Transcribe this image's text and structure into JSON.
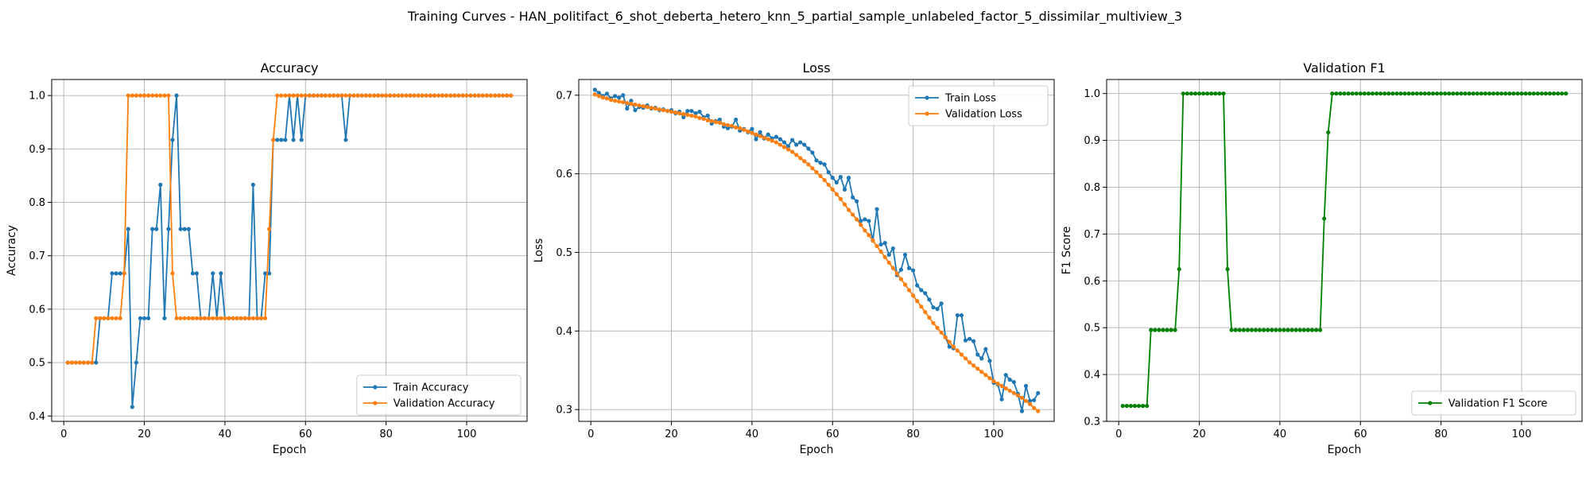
{
  "figure": {
    "title": "Training Curves - HAN_politifact_6_shot_deberta_hetero_knn_5_partial_sample_unlabeled_factor_5_dissimilar_multiview_3"
  },
  "colors": {
    "train": "#1f77b4",
    "validation": "#ff7f0e",
    "f1": "#008000",
    "grid": "#b0b0b0"
  },
  "chart_data": [
    {
      "type": "line",
      "title": "Accuracy",
      "xlabel": "Epoch",
      "ylabel": "Accuracy",
      "xlim": [
        -3,
        115
      ],
      "ylim": [
        0.39,
        1.03
      ],
      "xticks": [
        0,
        20,
        40,
        60,
        80,
        100
      ],
      "yticks": [
        0.4,
        0.5,
        0.6,
        0.7,
        0.8,
        0.9,
        1.0
      ],
      "grid": true,
      "legend_position": "lower-right",
      "x": [
        1,
        2,
        3,
        4,
        5,
        6,
        7,
        8,
        9,
        10,
        11,
        12,
        13,
        14,
        15,
        16,
        17,
        18,
        19,
        20,
        21,
        22,
        23,
        24,
        25,
        26,
        27,
        28,
        29,
        30,
        31,
        32,
        33,
        34,
        35,
        36,
        37,
        38,
        39,
        40,
        41,
        42,
        43,
        44,
        45,
        46,
        47,
        48,
        49,
        50,
        51,
        52,
        53,
        54,
        55,
        56,
        57,
        58,
        59,
        60,
        61,
        62,
        63,
        64,
        65,
        66,
        67,
        68,
        69,
        70,
        71,
        72,
        73,
        74,
        75,
        76,
        77,
        78,
        79,
        80,
        81,
        82,
        83,
        84,
        85,
        86,
        87,
        88,
        89,
        90,
        91,
        92,
        93,
        94,
        95,
        96,
        97,
        98,
        99,
        100,
        101,
        102,
        103,
        104,
        105,
        106,
        107,
        108,
        109,
        110,
        111
      ],
      "series": [
        {
          "name": "Train Accuracy",
          "color_key": "train",
          "values": [
            0.5,
            0.5,
            0.5,
            0.5,
            0.5,
            0.5,
            0.5,
            0.5,
            0.583,
            0.583,
            0.583,
            0.667,
            0.667,
            0.667,
            0.667,
            0.75,
            0.417,
            0.5,
            0.583,
            0.583,
            0.583,
            0.75,
            0.75,
            0.833,
            0.583,
            0.75,
            0.917,
            1.0,
            0.75,
            0.75,
            0.75,
            0.667,
            0.667,
            0.583,
            0.583,
            0.583,
            0.667,
            0.583,
            0.667,
            0.583,
            0.583,
            0.583,
            0.583,
            0.583,
            0.583,
            0.583,
            0.833,
            0.583,
            0.583,
            0.667,
            0.667,
            0.917,
            0.917,
            0.917,
            0.917,
            1.0,
            0.917,
            1.0,
            0.917,
            1.0,
            1.0,
            1.0,
            1.0,
            1.0,
            1.0,
            1.0,
            1.0,
            1.0,
            1.0,
            0.917,
            1.0,
            1.0,
            1.0,
            1.0,
            1.0,
            1.0,
            1.0,
            1.0,
            1.0,
            1.0,
            1.0,
            1.0,
            1.0,
            1.0,
            1.0,
            1.0,
            1.0,
            1.0,
            1.0,
            1.0,
            1.0,
            1.0,
            1.0,
            1.0,
            1.0,
            1.0,
            1.0,
            1.0,
            1.0,
            1.0,
            1.0,
            1.0,
            1.0,
            1.0,
            1.0,
            1.0,
            1.0,
            1.0,
            1.0,
            1.0,
            1.0
          ]
        },
        {
          "name": "Validation Accuracy",
          "color_key": "validation",
          "values": [
            0.5,
            0.5,
            0.5,
            0.5,
            0.5,
            0.5,
            0.5,
            0.583,
            0.583,
            0.583,
            0.583,
            0.583,
            0.583,
            0.583,
            0.667,
            1.0,
            1.0,
            1.0,
            1.0,
            1.0,
            1.0,
            1.0,
            1.0,
            1.0,
            1.0,
            1.0,
            0.667,
            0.583,
            0.583,
            0.583,
            0.583,
            0.583,
            0.583,
            0.583,
            0.583,
            0.583,
            0.583,
            0.583,
            0.583,
            0.583,
            0.583,
            0.583,
            0.583,
            0.583,
            0.583,
            0.583,
            0.583,
            0.583,
            0.583,
            0.583,
            0.75,
            0.917,
            1.0,
            1.0,
            1.0,
            1.0,
            1.0,
            1.0,
            1.0,
            1.0,
            1.0,
            1.0,
            1.0,
            1.0,
            1.0,
            1.0,
            1.0,
            1.0,
            1.0,
            1.0,
            1.0,
            1.0,
            1.0,
            1.0,
            1.0,
            1.0,
            1.0,
            1.0,
            1.0,
            1.0,
            1.0,
            1.0,
            1.0,
            1.0,
            1.0,
            1.0,
            1.0,
            1.0,
            1.0,
            1.0,
            1.0,
            1.0,
            1.0,
            1.0,
            1.0,
            1.0,
            1.0,
            1.0,
            1.0,
            1.0,
            1.0,
            1.0,
            1.0,
            1.0,
            1.0,
            1.0,
            1.0,
            1.0,
            1.0,
            1.0,
            1.0
          ]
        }
      ]
    },
    {
      "type": "line",
      "title": "Loss",
      "xlabel": "Epoch",
      "ylabel": "Loss",
      "xlim": [
        -3,
        115
      ],
      "ylim": [
        0.285,
        0.72
      ],
      "xticks": [
        0,
        20,
        40,
        60,
        80,
        100
      ],
      "yticks": [
        0.3,
        0.4,
        0.5,
        0.6,
        0.7
      ],
      "grid": true,
      "legend_position": "upper-right",
      "x": [
        1,
        2,
        3,
        4,
        5,
        6,
        7,
        8,
        9,
        10,
        11,
        12,
        13,
        14,
        15,
        16,
        17,
        18,
        19,
        20,
        21,
        22,
        23,
        24,
        25,
        26,
        27,
        28,
        29,
        30,
        31,
        32,
        33,
        34,
        35,
        36,
        37,
        38,
        39,
        40,
        41,
        42,
        43,
        44,
        45,
        46,
        47,
        48,
        49,
        50,
        51,
        52,
        53,
        54,
        55,
        56,
        57,
        58,
        59,
        60,
        61,
        62,
        63,
        64,
        65,
        66,
        67,
        68,
        69,
        70,
        71,
        72,
        73,
        74,
        75,
        76,
        77,
        78,
        79,
        80,
        81,
        82,
        83,
        84,
        85,
        86,
        87,
        88,
        89,
        90,
        91,
        92,
        93,
        94,
        95,
        96,
        97,
        98,
        99,
        100,
        101,
        102,
        103,
        104,
        105,
        106,
        107,
        108,
        109,
        110,
        111
      ],
      "series": [
        {
          "name": "Train Loss",
          "color_key": "train",
          "values": [
            0.707,
            0.703,
            0.699,
            0.702,
            0.696,
            0.699,
            0.697,
            0.7,
            0.683,
            0.693,
            0.681,
            0.685,
            0.684,
            0.687,
            0.683,
            0.684,
            0.681,
            0.682,
            0.68,
            0.681,
            0.677,
            0.679,
            0.672,
            0.68,
            0.68,
            0.677,
            0.679,
            0.672,
            0.674,
            0.664,
            0.667,
            0.669,
            0.66,
            0.658,
            0.66,
            0.669,
            0.655,
            0.657,
            0.653,
            0.657,
            0.644,
            0.653,
            0.645,
            0.65,
            0.645,
            0.647,
            0.644,
            0.64,
            0.635,
            0.643,
            0.637,
            0.64,
            0.637,
            0.632,
            0.627,
            0.617,
            0.614,
            0.612,
            0.602,
            0.595,
            0.589,
            0.596,
            0.58,
            0.595,
            0.57,
            0.565,
            0.54,
            0.542,
            0.54,
            0.515,
            0.555,
            0.51,
            0.512,
            0.497,
            0.505,
            0.471,
            0.478,
            0.497,
            0.48,
            0.477,
            0.458,
            0.452,
            0.448,
            0.44,
            0.43,
            0.428,
            0.435,
            0.392,
            0.38,
            0.378,
            0.42,
            0.42,
            0.388,
            0.39,
            0.387,
            0.37,
            0.365,
            0.377,
            0.362,
            0.334,
            0.332,
            0.313,
            0.344,
            0.338,
            0.335,
            0.32,
            0.298,
            0.33,
            0.311,
            0.312,
            0.321
          ]
        },
        {
          "name": "Validation Loss",
          "color_key": "validation",
          "values": [
            0.701,
            0.699,
            0.697,
            0.696,
            0.694,
            0.693,
            0.692,
            0.691,
            0.69,
            0.689,
            0.688,
            0.687,
            0.686,
            0.685,
            0.684,
            0.683,
            0.682,
            0.681,
            0.68,
            0.679,
            0.678,
            0.677,
            0.676,
            0.675,
            0.674,
            0.673,
            0.671,
            0.67,
            0.668,
            0.667,
            0.666,
            0.665,
            0.663,
            0.662,
            0.661,
            0.659,
            0.658,
            0.656,
            0.654,
            0.652,
            0.65,
            0.648,
            0.646,
            0.644,
            0.642,
            0.64,
            0.637,
            0.634,
            0.631,
            0.628,
            0.624,
            0.62,
            0.616,
            0.612,
            0.607,
            0.602,
            0.597,
            0.592,
            0.586,
            0.58,
            0.574,
            0.568,
            0.561,
            0.554,
            0.548,
            0.542,
            0.535,
            0.528,
            0.522,
            0.515,
            0.508,
            0.501,
            0.494,
            0.487,
            0.48,
            0.473,
            0.466,
            0.459,
            0.452,
            0.445,
            0.438,
            0.431,
            0.424,
            0.417,
            0.41,
            0.404,
            0.398,
            0.392,
            0.386,
            0.38,
            0.375,
            0.37,
            0.365,
            0.36,
            0.356,
            0.352,
            0.348,
            0.344,
            0.34,
            0.336,
            0.333,
            0.33,
            0.327,
            0.324,
            0.321,
            0.318,
            0.315,
            0.311,
            0.307,
            0.302,
            0.298
          ]
        }
      ]
    },
    {
      "type": "line",
      "title": "Validation F1",
      "xlabel": "Epoch",
      "ylabel": "F1 Score",
      "xlim": [
        -3,
        115
      ],
      "ylim": [
        0.3,
        1.03
      ],
      "xticks": [
        0,
        20,
        40,
        60,
        80,
        100
      ],
      "yticks": [
        0.3,
        0.4,
        0.5,
        0.6,
        0.7,
        0.8,
        0.9,
        1.0
      ],
      "grid": true,
      "legend_position": "lower-right",
      "x": [
        1,
        2,
        3,
        4,
        5,
        6,
        7,
        8,
        9,
        10,
        11,
        12,
        13,
        14,
        15,
        16,
        17,
        18,
        19,
        20,
        21,
        22,
        23,
        24,
        25,
        26,
        27,
        28,
        29,
        30,
        31,
        32,
        33,
        34,
        35,
        36,
        37,
        38,
        39,
        40,
        41,
        42,
        43,
        44,
        45,
        46,
        47,
        48,
        49,
        50,
        51,
        52,
        53,
        54,
        55,
        56,
        57,
        58,
        59,
        60,
        61,
        62,
        63,
        64,
        65,
        66,
        67,
        68,
        69,
        70,
        71,
        72,
        73,
        74,
        75,
        76,
        77,
        78,
        79,
        80,
        81,
        82,
        83,
        84,
        85,
        86,
        87,
        88,
        89,
        90,
        91,
        92,
        93,
        94,
        95,
        96,
        97,
        98,
        99,
        100,
        101,
        102,
        103,
        104,
        105,
        106,
        107,
        108,
        109,
        110,
        111
      ],
      "series": [
        {
          "name": "Validation F1 Score",
          "color_key": "f1",
          "values": [
            0.333,
            0.333,
            0.333,
            0.333,
            0.333,
            0.333,
            0.333,
            0.495,
            0.495,
            0.495,
            0.495,
            0.495,
            0.495,
            0.495,
            0.625,
            1.0,
            1.0,
            1.0,
            1.0,
            1.0,
            1.0,
            1.0,
            1.0,
            1.0,
            1.0,
            1.0,
            0.625,
            0.495,
            0.495,
            0.495,
            0.495,
            0.495,
            0.495,
            0.495,
            0.495,
            0.495,
            0.495,
            0.495,
            0.495,
            0.495,
            0.495,
            0.495,
            0.495,
            0.495,
            0.495,
            0.495,
            0.495,
            0.495,
            0.495,
            0.495,
            0.733,
            0.917,
            1.0,
            1.0,
            1.0,
            1.0,
            1.0,
            1.0,
            1.0,
            1.0,
            1.0,
            1.0,
            1.0,
            1.0,
            1.0,
            1.0,
            1.0,
            1.0,
            1.0,
            1.0,
            1.0,
            1.0,
            1.0,
            1.0,
            1.0,
            1.0,
            1.0,
            1.0,
            1.0,
            1.0,
            1.0,
            1.0,
            1.0,
            1.0,
            1.0,
            1.0,
            1.0,
            1.0,
            1.0,
            1.0,
            1.0,
            1.0,
            1.0,
            1.0,
            1.0,
            1.0,
            1.0,
            1.0,
            1.0,
            1.0,
            1.0,
            1.0,
            1.0,
            1.0,
            1.0,
            1.0,
            1.0,
            1.0,
            1.0,
            1.0,
            1.0
          ]
        }
      ]
    }
  ]
}
